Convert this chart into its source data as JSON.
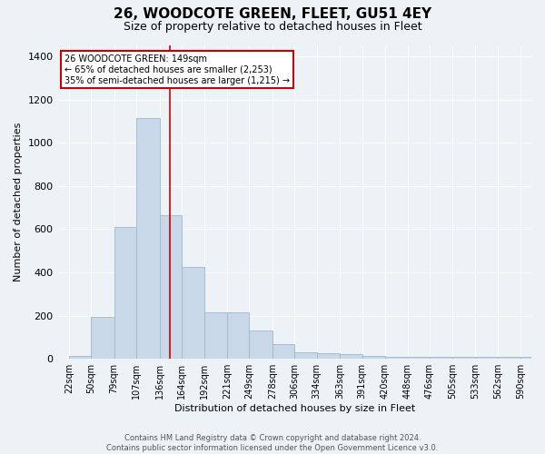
{
  "title": "26, WOODCOTE GREEN, FLEET, GU51 4EY",
  "subtitle": "Size of property relative to detached houses in Fleet",
  "xlabel": "Distribution of detached houses by size in Fleet",
  "ylabel": "Number of detached properties",
  "bar_color": "#c8d8e8",
  "bar_edgecolor": "#a0b8cc",
  "vline_x": 149,
  "vline_color": "#cc0000",
  "annotation_line1": "26 WOODCOTE GREEN: 149sqm",
  "annotation_line2": "← 65% of detached houses are smaller (2,253)",
  "annotation_line3": "35% of semi-detached houses are larger (1,215) →",
  "annotation_box_edgecolor": "#cc0000",
  "categories": [
    "22sqm",
    "50sqm",
    "79sqm",
    "107sqm",
    "136sqm",
    "164sqm",
    "192sqm",
    "221sqm",
    "249sqm",
    "278sqm",
    "306sqm",
    "334sqm",
    "363sqm",
    "391sqm",
    "420sqm",
    "448sqm",
    "476sqm",
    "505sqm",
    "533sqm",
    "562sqm",
    "590sqm"
  ],
  "bin_edges": [
    22,
    50,
    79,
    107,
    136,
    164,
    192,
    221,
    249,
    278,
    306,
    334,
    363,
    391,
    420,
    448,
    476,
    505,
    533,
    562,
    590
  ],
  "values": [
    15,
    195,
    610,
    1115,
    665,
    425,
    215,
    215,
    130,
    70,
    30,
    25,
    20,
    15,
    10,
    10,
    10,
    10,
    10,
    10,
    10
  ],
  "ylim": [
    0,
    1450
  ],
  "yticks": [
    0,
    200,
    400,
    600,
    800,
    1000,
    1200,
    1400
  ],
  "footer_text": "Contains HM Land Registry data © Crown copyright and database right 2024.\nContains public sector information licensed under the Open Government Licence v3.0.",
  "bg_color": "#edf2f7",
  "plot_bg_color": "#edf2f7",
  "title_fontsize": 11,
  "subtitle_fontsize": 9,
  "footer_fontsize": 6
}
